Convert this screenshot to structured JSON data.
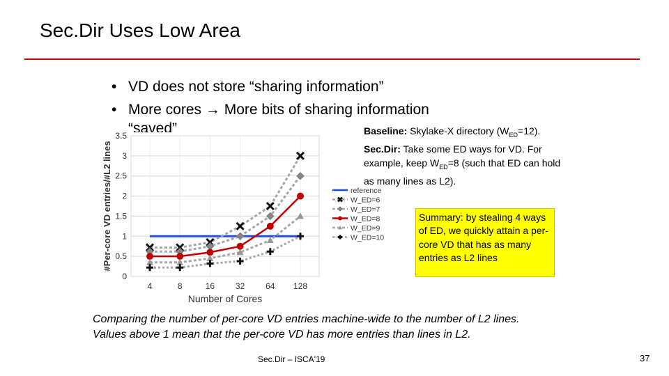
{
  "slide": {
    "title": "Sec.Dir Uses Low Area",
    "bullets": [
      "VD does not store “sharing information”",
      "More cores → More bits of sharing information"
    ],
    "bullet_continuation": "“saved”",
    "baseline_note": {
      "baseline_label": "Baseline:",
      "baseline_text_a": " Skylake-X directory (W",
      "baseline_sub": "ED",
      "baseline_text_b": "=12).",
      "secdir_label": "Sec.Dir:",
      "secdir_text_a": " Take some ED ways for VD. For example, keep W",
      "secdir_sub": "ED",
      "secdir_text_b": "=8 (such that ED can hold as many lines as L2)."
    },
    "summary_box": "Summary: by stealing 4 ways of ED, we quickly attain a per-core VD that has as many entries as L2 lines",
    "caption_line1": "Comparing the number of per-core VD entries machine-wide to the number of L2 lines.",
    "caption_line2": "Values above 1 mean that the per-core VD has more entries than lines in L2.",
    "footer": "Sec.Dir – ISCA'19",
    "page_number": "37",
    "accent_color": "#c00000"
  },
  "chart_data": {
    "type": "line",
    "xlabel": "Number of Cores",
    "ylabel": "#Per-core VD entries/#L2 lines",
    "categories": [
      "4",
      "8",
      "16",
      "32",
      "64",
      "128"
    ],
    "yticks": [
      "0",
      "0.5",
      "1",
      "1.5",
      "2",
      "2.5",
      "3",
      "3.5"
    ],
    "ylim": [
      0,
      3.5
    ],
    "grid": true,
    "legend_position": "right",
    "series": [
      {
        "name": "reference",
        "values": [
          1,
          1,
          1,
          1,
          1,
          1
        ],
        "color": "#1f4fd8",
        "dash": "",
        "marker": "none",
        "width": 3
      },
      {
        "name": "W_ED=6",
        "values": [
          0.72,
          0.72,
          0.85,
          1.25,
          1.75,
          3.0
        ],
        "color": "#a6a6a6",
        "dash": "4 3",
        "marker": "x",
        "width": 3
      },
      {
        "name": "W_ED=7",
        "values": [
          0.62,
          0.62,
          0.75,
          1.0,
          1.5,
          2.5
        ],
        "color": "#a6a6a6",
        "dash": "4 3",
        "marker": "diamond",
        "width": 3
      },
      {
        "name": "W_ED=8",
        "values": [
          0.5,
          0.5,
          0.6,
          0.75,
          1.25,
          2.0
        ],
        "color": "#c00000",
        "dash": "",
        "marker": "circle",
        "width": 2.5
      },
      {
        "name": "W_ED=9",
        "values": [
          0.35,
          0.35,
          0.45,
          0.6,
          0.9,
          1.5
        ],
        "color": "#a6a6a6",
        "dash": "4 3",
        "marker": "triangle",
        "width": 3
      },
      {
        "name": "W_ED=10",
        "values": [
          0.22,
          0.22,
          0.32,
          0.38,
          0.62,
          1.0
        ],
        "color": "#a6a6a6",
        "dash": "3 3",
        "marker": "plus",
        "width": 3
      }
    ]
  }
}
